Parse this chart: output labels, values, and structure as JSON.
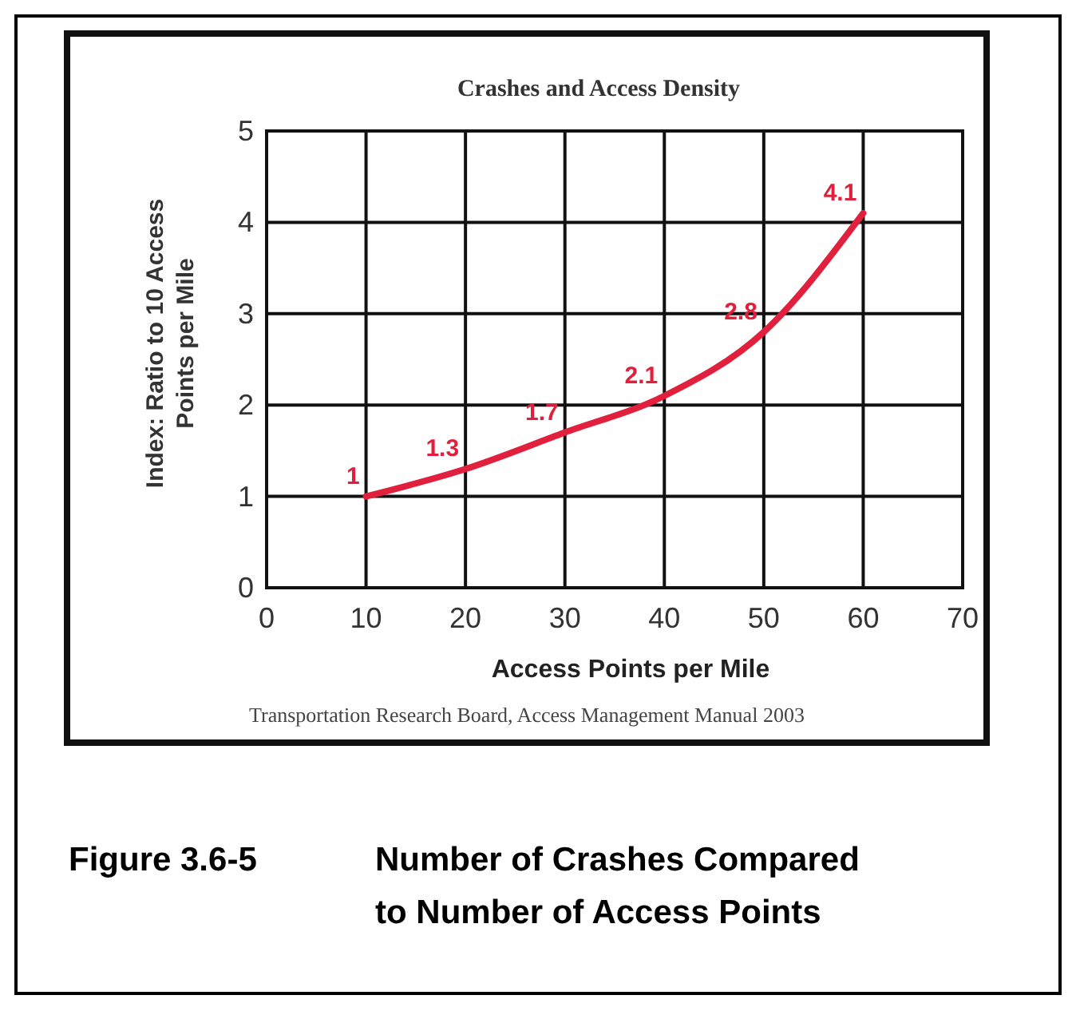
{
  "chart_data": {
    "type": "line",
    "title": "Crashes and Access Density",
    "xlabel": "Access Points per Mile",
    "ylabel": "Index: Ratio to 10 Access Points per Mile",
    "x": [
      10,
      20,
      30,
      40,
      50,
      60
    ],
    "series": [
      {
        "color": "#e0203c",
        "values": [
          1,
          1.3,
          1.7,
          2.1,
          2.8,
          4.1
        ]
      }
    ],
    "xlim": [
      0,
      70
    ],
    "xticks": [
      0,
      10,
      20,
      30,
      40,
      50,
      60,
      70
    ],
    "ylim": [
      0,
      5
    ],
    "yticks": [
      0,
      1,
      2,
      3,
      4,
      5
    ],
    "grid": true,
    "data_labels": true,
    "marker": "none",
    "line_style": "solid",
    "annotations": [
      "Transportation Research Board, Access Management Manual 2003",
      "Figure 3.6-5",
      "Number of Crashes Compared to Number of Access Points"
    ]
  }
}
